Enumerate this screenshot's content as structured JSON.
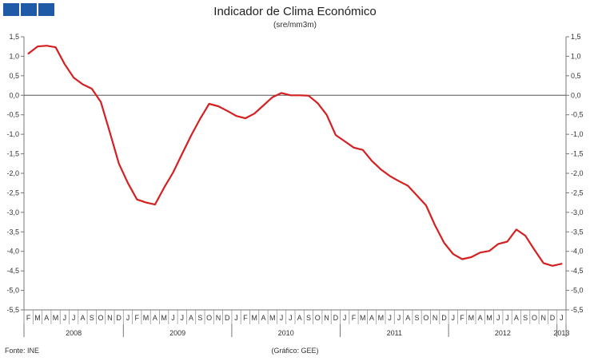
{
  "logo": {
    "icon": "ine-logo-icon"
  },
  "chart_data": {
    "type": "line",
    "title": "Indicador de Clima Económico",
    "subtitle": "(sre/mm3m)",
    "xlabel": "",
    "ylabel": "",
    "ylim": [
      -5.5,
      1.5
    ],
    "yticks": [
      "1,5",
      "1,0",
      "0,5",
      "0,0",
      "-0,5",
      "-1,0",
      "-1,5",
      "-2,0",
      "-2,5",
      "-3,0",
      "-3,5",
      "-4,0",
      "-4,5",
      "-5,0",
      "-5,5"
    ],
    "ytick_values": [
      1.5,
      1.0,
      0.5,
      0.0,
      -0.5,
      -1.0,
      -1.5,
      -2.0,
      -2.5,
      -3.0,
      -3.5,
      -4.0,
      -4.5,
      -5.0,
      -5.5
    ],
    "month_labels": [
      "F",
      "M",
      "A",
      "M",
      "J",
      "J",
      "A",
      "S",
      "O",
      "N",
      "D",
      "J",
      "F",
      "M",
      "A",
      "M",
      "J",
      "J",
      "A",
      "S",
      "O",
      "N",
      "D",
      "J",
      "F",
      "M",
      "A",
      "M",
      "J",
      "J",
      "A",
      "S",
      "O",
      "N",
      "D",
      "J",
      "F",
      "M",
      "A",
      "M",
      "J",
      "J",
      "A",
      "S",
      "O",
      "N",
      "D",
      "J",
      "F",
      "M",
      "A",
      "M",
      "J",
      "J",
      "A",
      "S",
      "O",
      "N",
      "D",
      "J"
    ],
    "years": [
      {
        "label": "2008",
        "start": 0,
        "end": 11
      },
      {
        "label": "2009",
        "start": 11,
        "end": 23
      },
      {
        "label": "2010",
        "start": 23,
        "end": 35
      },
      {
        "label": "2011",
        "start": 35,
        "end": 47
      },
      {
        "label": "2012",
        "start": 47,
        "end": 59
      },
      {
        "label": "2013",
        "start": 59,
        "end": 60
      }
    ],
    "series": [
      {
        "color": "#d42020",
        "values": [
          1.07,
          1.25,
          1.27,
          1.23,
          0.8,
          0.45,
          0.28,
          0.17,
          -0.17,
          -0.95,
          -1.75,
          -2.25,
          -2.67,
          -2.75,
          -2.8,
          -2.37,
          -1.98,
          -1.5,
          -1.03,
          -0.6,
          -0.22,
          -0.28,
          -0.4,
          -0.53,
          -0.59,
          -0.47,
          -0.26,
          -0.05,
          0.06,
          0.0,
          0.0,
          -0.01,
          -0.2,
          -0.5,
          -1.02,
          -1.18,
          -1.34,
          -1.4,
          -1.68,
          -1.9,
          -2.07,
          -2.2,
          -2.32,
          -2.57,
          -2.82,
          -3.33,
          -3.78,
          -4.07,
          -4.2,
          -4.15,
          -4.03,
          -3.99,
          -3.81,
          -3.75,
          -3.44,
          -3.6,
          -3.96,
          -4.3,
          -4.37,
          -4.32
        ]
      }
    ],
    "grid": false,
    "legend": "none"
  },
  "footer": {
    "source": "Fonte: INE",
    "credit": "(Gráfico: GEE)"
  }
}
